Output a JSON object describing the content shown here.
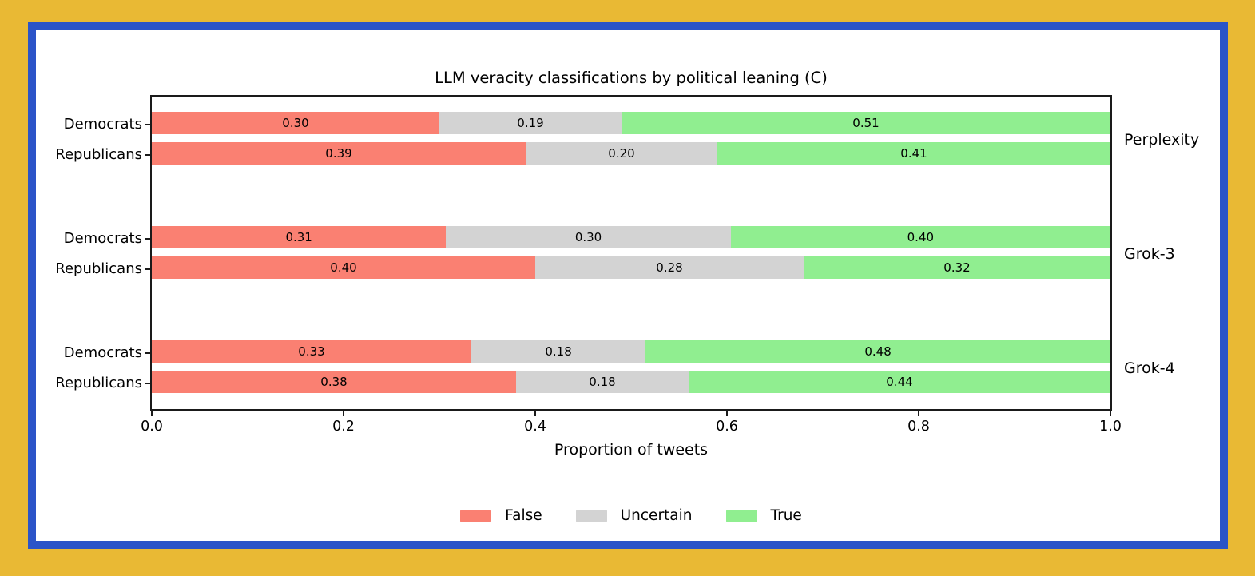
{
  "window": {
    "background_color": "#E9B934",
    "frame_border_color": "#2B54C8",
    "canvas_color": "#ffffff",
    "spine_color": "#1a1a1a"
  },
  "chart_data": {
    "type": "bar",
    "orientation": "horizontal",
    "stacked": true,
    "title": "LLM veracity classifications by political leaning (C)",
    "xlabel": "Proportion of tweets",
    "xlim": [
      0,
      1
    ],
    "x_tick_labels": [
      "0.0",
      "0.2",
      "0.4",
      "0.6",
      "0.8",
      "1.0"
    ],
    "grid": false,
    "legend_position": "bottom-center",
    "series": [
      {
        "name": "False",
        "color": "#FA8072"
      },
      {
        "name": "Uncertain",
        "color": "#D3D3D3"
      },
      {
        "name": "True",
        "color": "#90EE90"
      }
    ],
    "groups": [
      {
        "model": "Perplexity",
        "rows": [
          {
            "leaning": "Democrats",
            "values": [
              0.3,
              0.19,
              0.51
            ]
          },
          {
            "leaning": "Republicans",
            "values": [
              0.39,
              0.2,
              0.41
            ]
          }
        ]
      },
      {
        "model": "Grok-3",
        "rows": [
          {
            "leaning": "Democrats",
            "values": [
              0.31,
              0.3,
              0.4
            ]
          },
          {
            "leaning": "Republicans",
            "values": [
              0.4,
              0.28,
              0.32
            ]
          }
        ]
      },
      {
        "model": "Grok-4",
        "rows": [
          {
            "leaning": "Democrats",
            "values": [
              0.33,
              0.18,
              0.48
            ]
          },
          {
            "leaning": "Republicans",
            "values": [
              0.38,
              0.18,
              0.44
            ]
          }
        ]
      }
    ],
    "bar_label_decimals": 2
  }
}
